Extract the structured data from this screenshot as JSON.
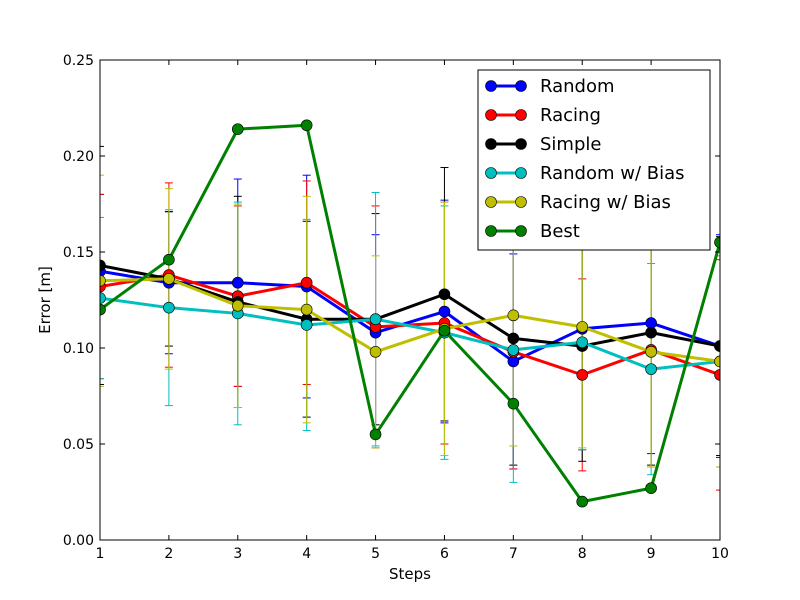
{
  "chart_data": {
    "type": "line",
    "title": "",
    "xlabel": "Steps",
    "ylabel": "Error [m]",
    "xlim": [
      1,
      10
    ],
    "ylim": [
      0.0,
      0.25
    ],
    "x": [
      1,
      2,
      3,
      4,
      5,
      6,
      7,
      8,
      9,
      10
    ],
    "xticks": [
      "1",
      "2",
      "3",
      "4",
      "5",
      "6",
      "7",
      "8",
      "9",
      "10"
    ],
    "yticks": [
      "0.00",
      "0.05",
      "0.10",
      "0.15",
      "0.20",
      "0.25"
    ],
    "grid": false,
    "legend_position": "upper right",
    "series": [
      {
        "name": "Random",
        "color": "#0000ff",
        "values": [
          0.14,
          0.134,
          0.134,
          0.132,
          0.108,
          0.119,
          0.093,
          0.11,
          0.113,
          0.101
        ],
        "err": [
          0.04,
          0.037,
          0.054,
          0.058,
          0.051,
          0.058,
          0.056,
          0.063,
          0.068,
          0.058
        ]
      },
      {
        "name": "Racing",
        "color": "#ff0000",
        "values": [
          0.132,
          0.138,
          0.127,
          0.134,
          0.111,
          0.113,
          0.098,
          0.086,
          0.099,
          0.086
        ],
        "err": [
          0.048,
          0.048,
          0.047,
          0.053,
          0.063,
          0.063,
          0.061,
          0.05,
          0.061,
          0.06
        ]
      },
      {
        "name": "Simple",
        "color": "#000000",
        "values": [
          0.143,
          0.136,
          0.124,
          0.115,
          0.115,
          0.128,
          0.105,
          0.101,
          0.108,
          0.101
        ],
        "err": [
          0.062,
          0.035,
          0.055,
          0.051,
          0.055,
          0.066,
          0.066,
          0.06,
          0.069,
          0.057
        ]
      },
      {
        "name": "Random w/ Bias",
        "color": "#00bfbf",
        "values": [
          0.126,
          0.121,
          0.118,
          0.112,
          0.115,
          0.108,
          0.099,
          0.103,
          0.089,
          0.093
        ],
        "err": [
          0.042,
          0.051,
          0.058,
          0.055,
          0.066,
          0.066,
          0.069,
          0.056,
          0.055,
          0.055
        ]
      },
      {
        "name": "Racing w/ Bias",
        "color": "#bfbf00",
        "values": [
          0.135,
          0.136,
          0.122,
          0.12,
          0.098,
          0.11,
          0.117,
          0.111,
          0.098,
          0.093
        ],
        "err": [
          0.055,
          0.047,
          0.053,
          0.059,
          0.05,
          0.066,
          0.068,
          0.063,
          0.06,
          0.055
        ]
      },
      {
        "name": "Best",
        "color": "#008000",
        "values": [
          0.12,
          0.146,
          0.214,
          0.216,
          0.055,
          0.109,
          0.071,
          0.02,
          0.027,
          0.155
        ],
        "err": [
          0.0,
          0.0,
          0.0,
          0.0,
          0.0,
          0.0,
          0.0,
          0.0,
          0.0,
          0.0
        ]
      }
    ]
  }
}
